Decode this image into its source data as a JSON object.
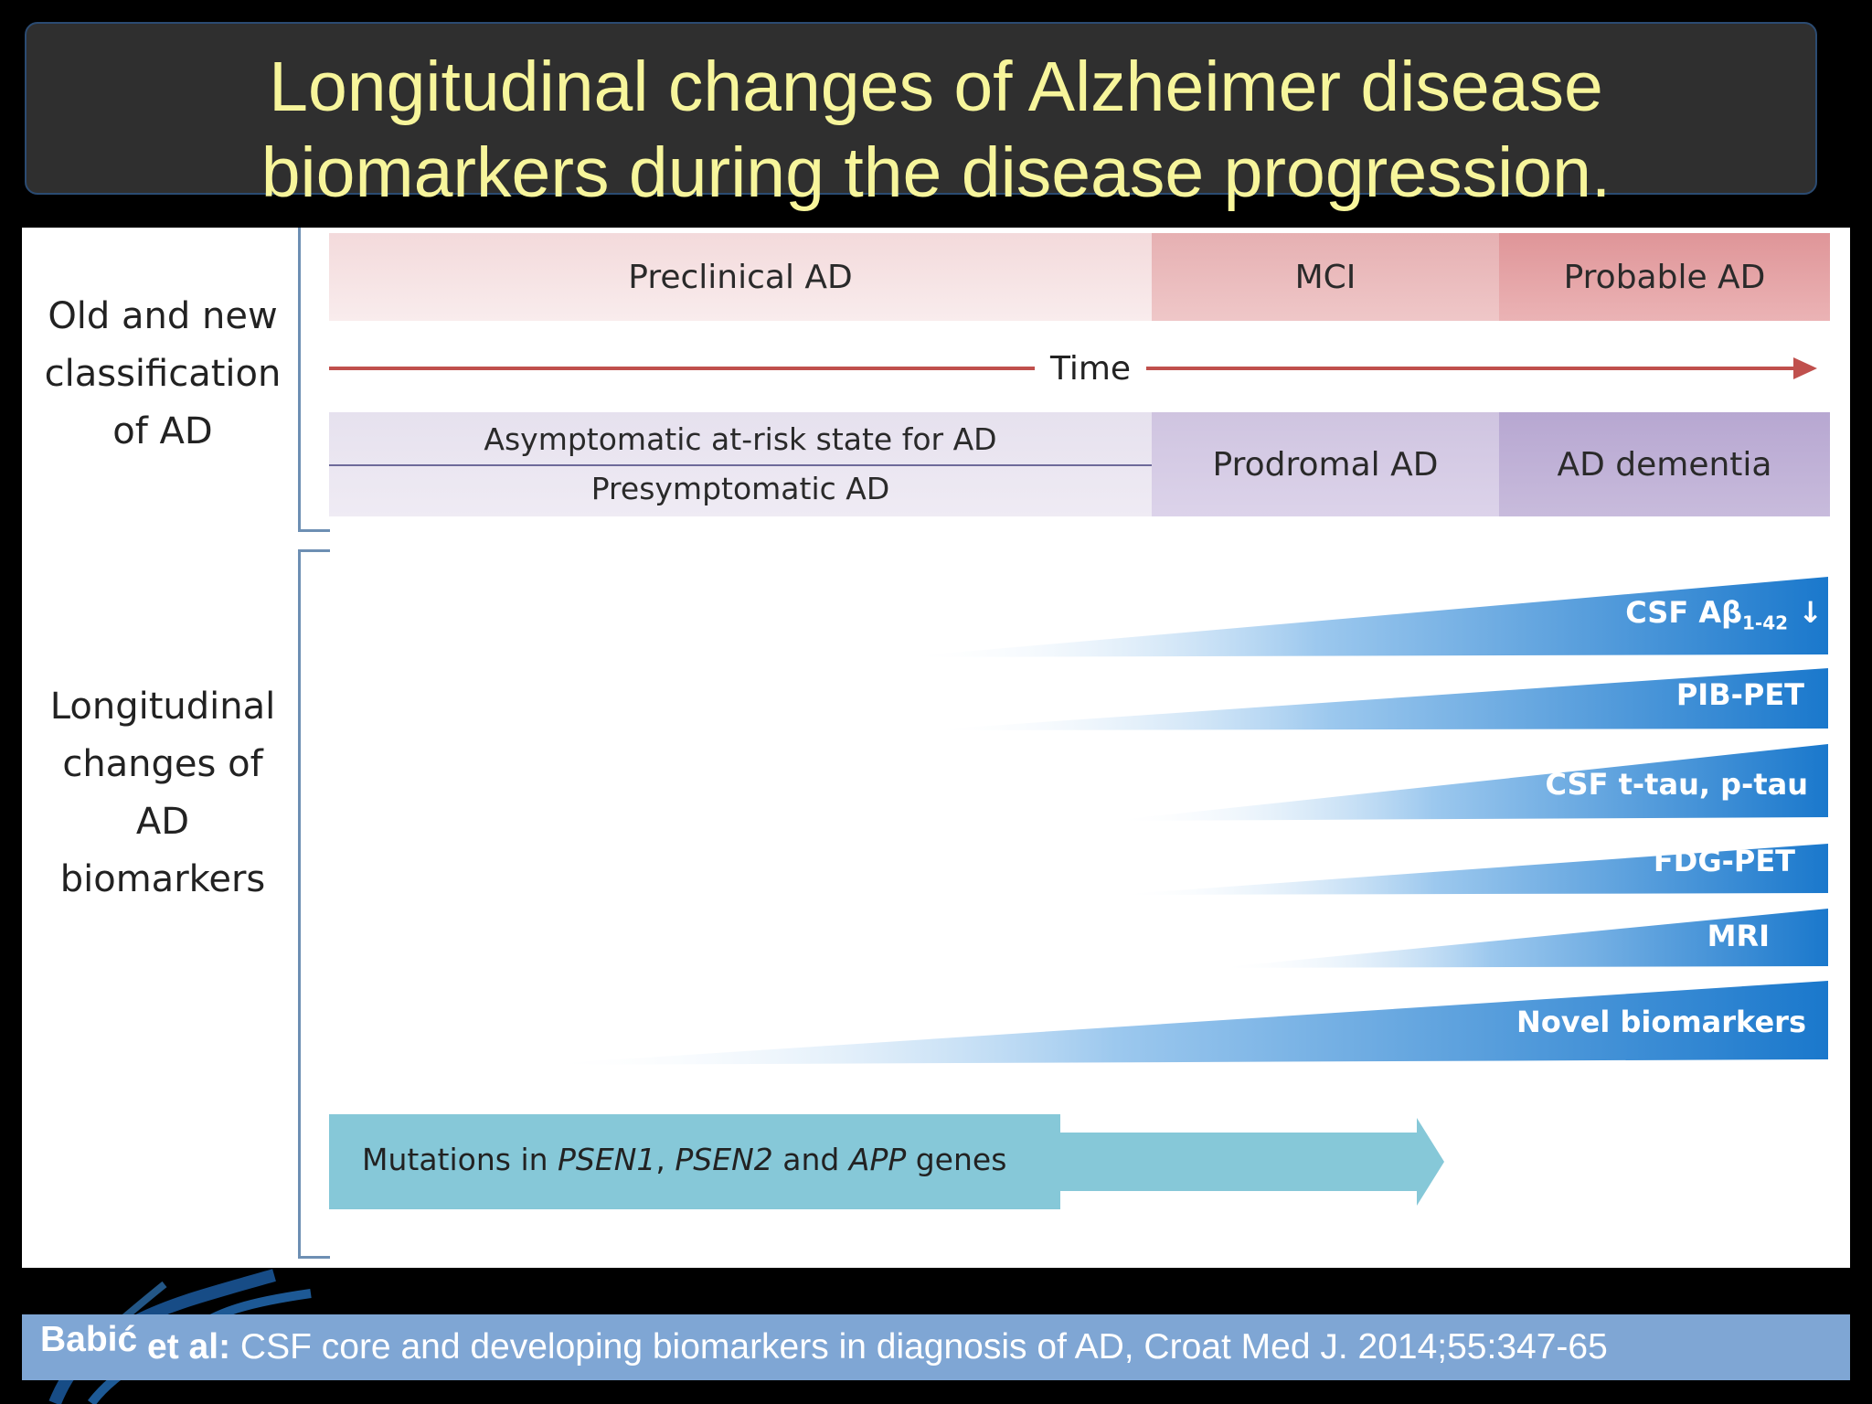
{
  "title": {
    "line1": "Longitudinal changes of Alzheimer disease",
    "line2": "biomarkers during the disease progression."
  },
  "side_labels": {
    "classification": [
      "Old and new",
      "classification",
      "of AD"
    ],
    "biomarkers": [
      "Longitudinal",
      "changes of",
      "AD",
      "biomarkers"
    ]
  },
  "old_classification": {
    "preclinical": "Preclinical AD",
    "mci": "MCI",
    "probable": "Probable AD"
  },
  "time_label": "Time",
  "new_classification": {
    "asymptomatic": "Asymptomatic at-risk state for AD",
    "presymptomatic": "Presymptomatic AD",
    "prodromal": "Prodromal AD",
    "dementia": "AD dementia"
  },
  "biomarkers": [
    {
      "label": "CSF Aβ",
      "sub": "1-42",
      "arrow": "↓"
    },
    {
      "label": "PIB-PET"
    },
    {
      "label": "CSF t-tau, p-tau"
    },
    {
      "label": "FDG-PET"
    },
    {
      "label": "MRI"
    },
    {
      "label": "Novel biomarkers"
    }
  ],
  "mutations": {
    "prefix": "Mutations in ",
    "gene1": "PSEN1",
    "sep1": ", ",
    "gene2": "PSEN2",
    "sep2": " and ",
    "gene3": "APP",
    "suffix": " genes"
  },
  "footer": {
    "author": "Babić",
    "etal": " et al:",
    "citation": " CSF core and developing biomarkers in diagnosis of AD, Croat Med J. 2014;55:347-65"
  },
  "colors": {
    "title_text": "#f7f59b",
    "title_box": "#2f2f2f",
    "preclinical": "#f4dfe0",
    "mci": "#e8b4b6",
    "probable": "#e29b9e",
    "new_class_light": "#e8e3f0",
    "prodromal": "#d4cae3",
    "dementia": "#bcadd4",
    "biomarker_blue": "#1f7fd1",
    "mutation": "#86c8d8",
    "footer": "#7fa6d4"
  }
}
